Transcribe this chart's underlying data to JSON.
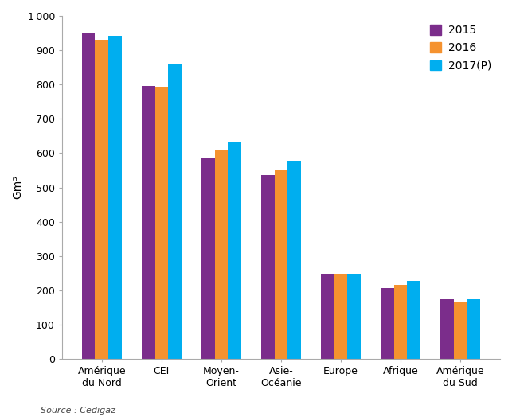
{
  "categories": [
    "Amérique\ndu Nord",
    "CEI",
    "Moyen-\nOrient",
    "Asie-\nOcéanie",
    "Europe",
    "Afrique",
    "Amérique\ndu Sud"
  ],
  "series": {
    "2015": [
      950,
      795,
      585,
      535,
      248,
      207,
      175
    ],
    "2016": [
      930,
      793,
      610,
      550,
      248,
      215,
      165
    ],
    "2017(P)": [
      943,
      858,
      632,
      577,
      248,
      227,
      175
    ]
  },
  "colors": {
    "2015": "#7B2D8B",
    "2016": "#F5922F",
    "2017(P)": "#00AEEF"
  },
  "ylabel": "Gm³",
  "ylim": [
    0,
    1000
  ],
  "yticks": [
    0,
    100,
    200,
    300,
    400,
    500,
    600,
    700,
    800,
    900,
    1000
  ],
  "source": "Source : Cedigaz",
  "legend_labels": [
    "2015",
    "2016",
    "2017(P)"
  ],
  "background_color": "#ffffff",
  "bar_width": 0.22,
  "figsize": [
    6.43,
    5.24
  ],
  "dpi": 100
}
